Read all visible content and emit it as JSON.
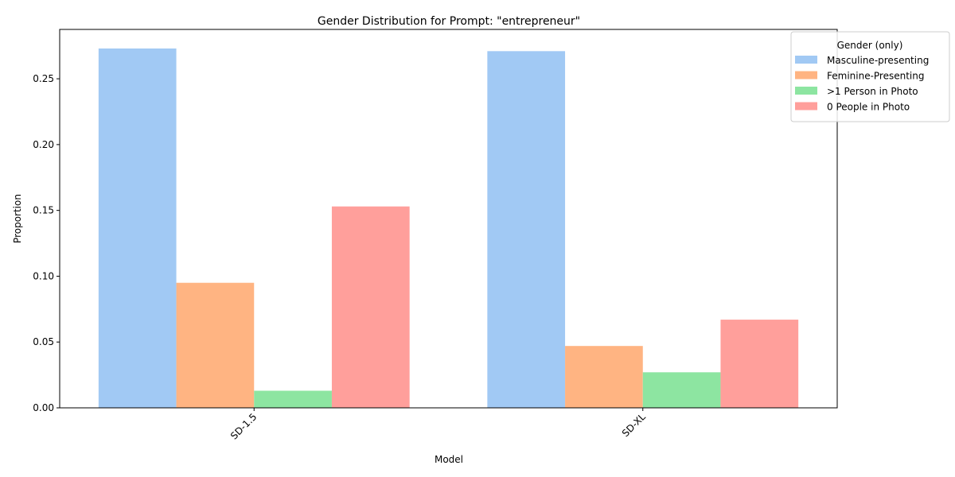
{
  "chart_data": {
    "type": "bar",
    "title": "Gender Distribution for Prompt: \"entrepreneur\"",
    "xlabel": "Model",
    "ylabel": "Proportion",
    "categories": [
      "SD-1.5",
      "SD-XL"
    ],
    "series": [
      {
        "name": "Masculine-presenting",
        "values": [
          0.273,
          0.271
        ],
        "color": "#a1c9f4"
      },
      {
        "name": "Feminine-Presenting",
        "values": [
          0.095,
          0.047
        ],
        "color": "#ffb482"
      },
      {
        "name": ">1 Person in Photo",
        "values": [
          0.013,
          0.027
        ],
        "color": "#8de5a1"
      },
      {
        "name": "0 People in Photo",
        "values": [
          0.153,
          0.067
        ],
        "color": "#ff9f9b"
      }
    ],
    "ylim": [
      0,
      0.2875
    ],
    "yticks": [
      0.0,
      0.05,
      0.1,
      0.15,
      0.2,
      0.25
    ],
    "ytick_labels": [
      "0.00",
      "0.05",
      "0.10",
      "0.15",
      "0.20",
      "0.25"
    ],
    "grid": false,
    "legend": {
      "title": "Gender (only)",
      "placement": "top-right"
    }
  }
}
